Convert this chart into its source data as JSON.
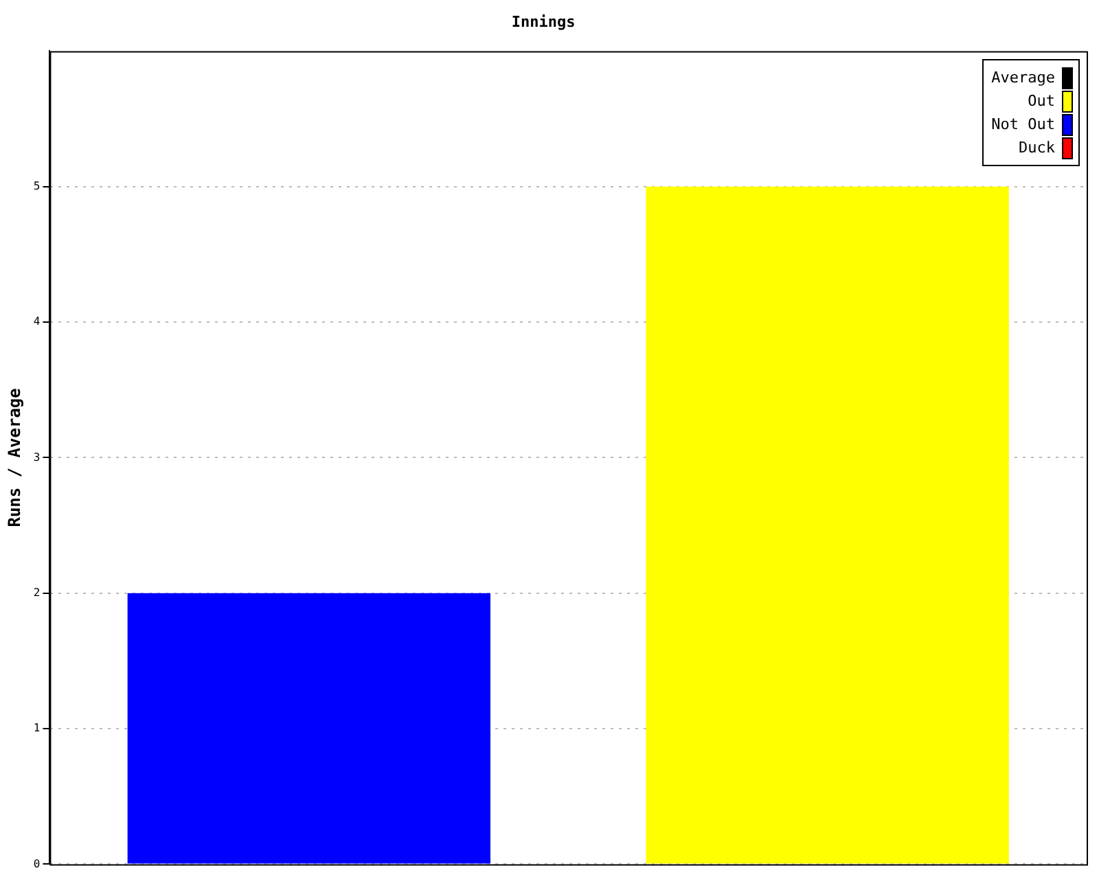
{
  "chart_data": {
    "type": "bar",
    "title": "Innings",
    "ylabel": "Runs / Average",
    "categories": [
      null,
      null
    ],
    "series": [
      {
        "name": "Average",
        "color": "#000000",
        "values": [
          null,
          null
        ]
      },
      {
        "name": "Out",
        "color": "#ffff00",
        "values": [
          null,
          5
        ]
      },
      {
        "name": "Not Out",
        "color": "#0000ff",
        "values": [
          2,
          null
        ]
      },
      {
        "name": "Duck",
        "color": "#ff0000",
        "values": [
          null,
          null
        ]
      }
    ],
    "ylim": [
      0,
      6
    ],
    "yticks": [
      0,
      1,
      2,
      3,
      4,
      5
    ],
    "grid": "y",
    "legend": "top right"
  }
}
